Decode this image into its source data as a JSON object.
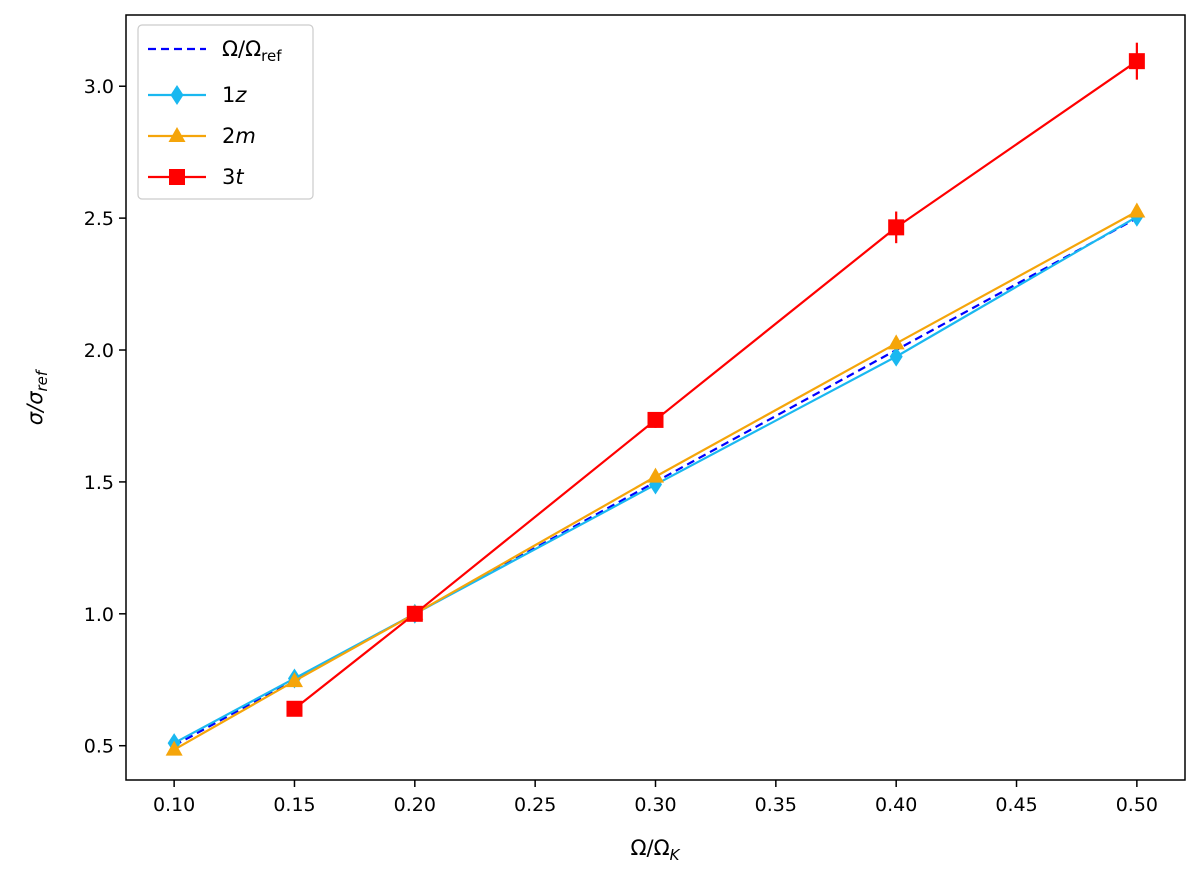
{
  "chart_data": {
    "type": "line",
    "title": "",
    "xlabel": {
      "base": "Ω/Ω",
      "sub": "K"
    },
    "ylabel": {
      "base": "σ/σ",
      "sub": "ref"
    },
    "xlim": [
      0.08,
      0.52
    ],
    "ylim": [
      0.37,
      3.27
    ],
    "xticks": [
      "0.10",
      "0.15",
      "0.20",
      "0.25",
      "0.30",
      "0.35",
      "0.40",
      "0.45",
      "0.50"
    ],
    "yticks": [
      "0.5",
      "1.0",
      "1.5",
      "2.0",
      "2.5",
      "3.0"
    ],
    "grid": false,
    "legend_position": "top-left",
    "series": [
      {
        "name": {
          "base": "Ω/Ω",
          "sub": "ref",
          "italic": false
        },
        "style": "dashed",
        "color": "#0000ff",
        "marker": "none",
        "x": [
          0.1,
          0.15,
          0.2,
          0.3,
          0.4,
          0.5
        ],
        "y": [
          0.5,
          0.75,
          1.0,
          1.5,
          2.0,
          2.5
        ]
      },
      {
        "name": {
          "base": "1",
          "italic_part": "z"
        },
        "style": "solid",
        "color": "#1ab8f0",
        "marker": "diamond",
        "x": [
          0.1,
          0.15,
          0.2,
          0.3,
          0.4,
          0.5
        ],
        "y": [
          0.51,
          0.755,
          1.0,
          1.49,
          1.975,
          2.505
        ]
      },
      {
        "name": {
          "base": "2",
          "italic_part": "m"
        },
        "style": "solid",
        "color": "#f5a50a",
        "marker": "triangle",
        "x": [
          0.1,
          0.15,
          0.2,
          0.3,
          0.4,
          0.5
        ],
        "y": [
          0.485,
          0.745,
          1.0,
          1.52,
          2.025,
          2.525
        ]
      },
      {
        "name": {
          "base": "3",
          "italic_part": "t"
        },
        "style": "solid",
        "color": "#ff0000",
        "marker": "square",
        "x": [
          0.15,
          0.2,
          0.3,
          0.4,
          0.5
        ],
        "y": [
          0.64,
          1.0,
          1.735,
          2.465,
          3.095
        ],
        "yerr": [
          0.02,
          0.02,
          0.03,
          0.06,
          0.07
        ]
      }
    ]
  }
}
